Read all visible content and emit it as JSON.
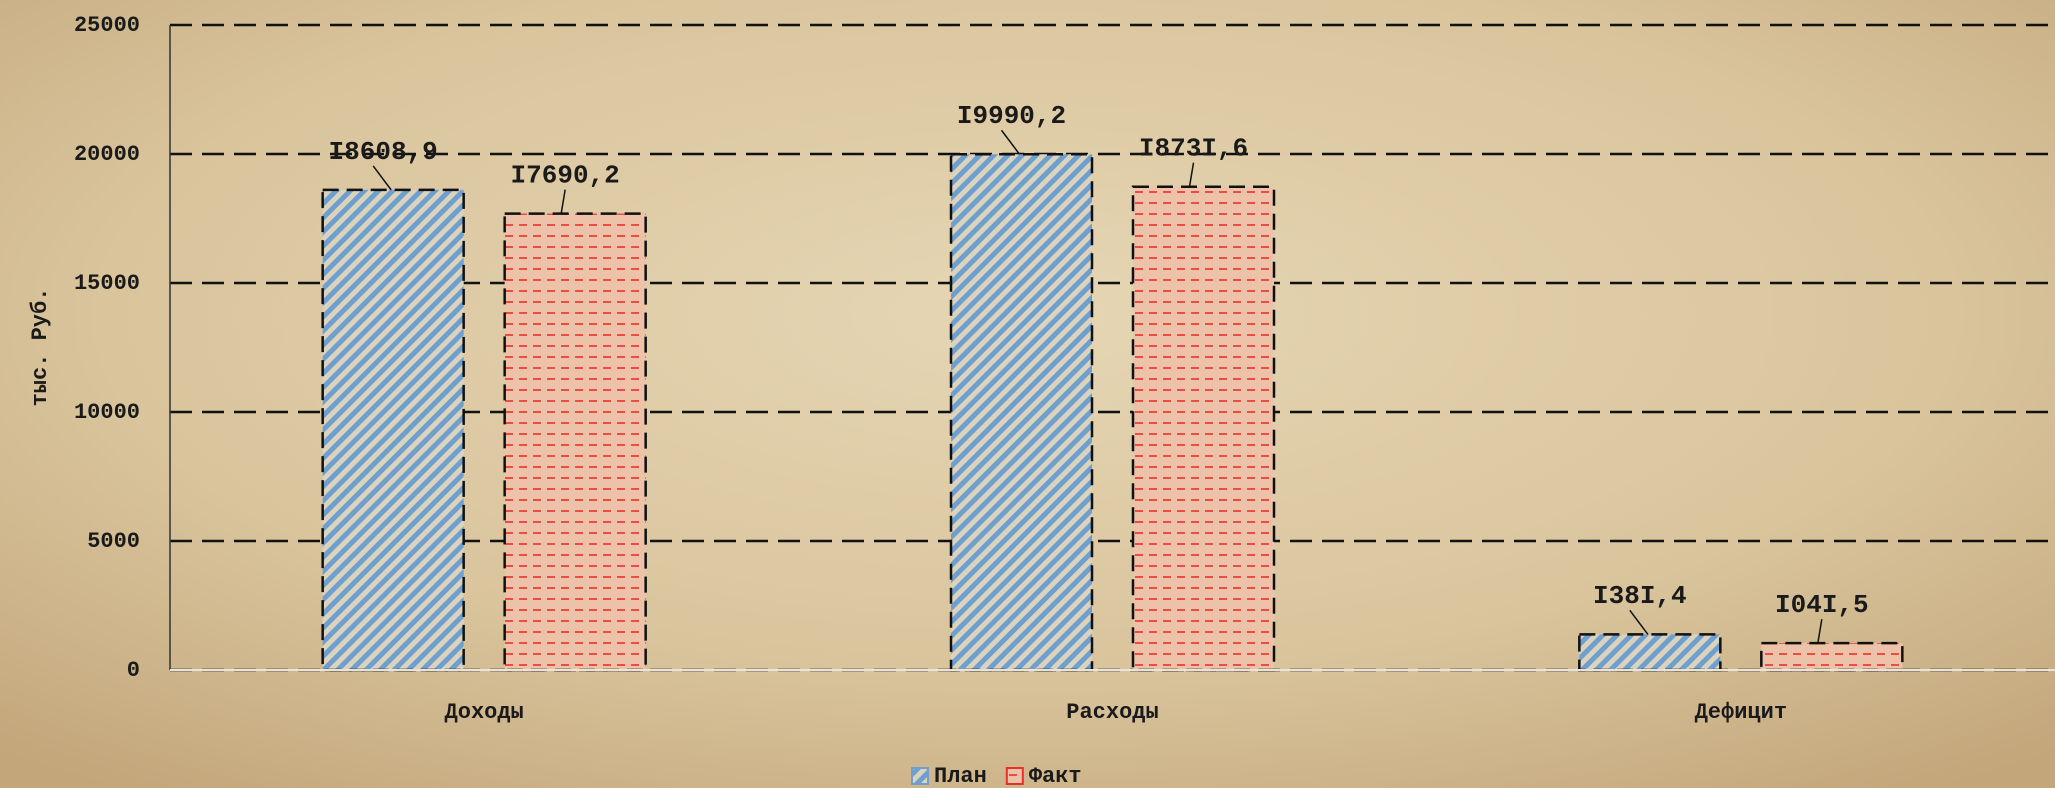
{
  "chart_data": {
    "type": "bar",
    "y_label": "тыс. Руб.",
    "categories": [
      "Доходы",
      "Расходы",
      "Дефицит"
    ],
    "series": [
      {
        "name": "План",
        "color": "#6f9fcf",
        "values": [
          18608.9,
          19990.2,
          1381.4
        ],
        "value_labels": [
          "I8608,9",
          "I9990,2",
          "I38I,4"
        ]
      },
      {
        "name": "Факт",
        "color": "#e8302a",
        "values": [
          17690.2,
          18731.6,
          1041.5
        ],
        "value_labels": [
          "I7690,2",
          "I873I,6",
          "I04I,5"
        ]
      }
    ],
    "ylim": [
      0,
      25000
    ],
    "yticks": [
      0,
      5000,
      10000,
      15000,
      20000,
      25000
    ],
    "grid": true,
    "legend": "bottom"
  }
}
